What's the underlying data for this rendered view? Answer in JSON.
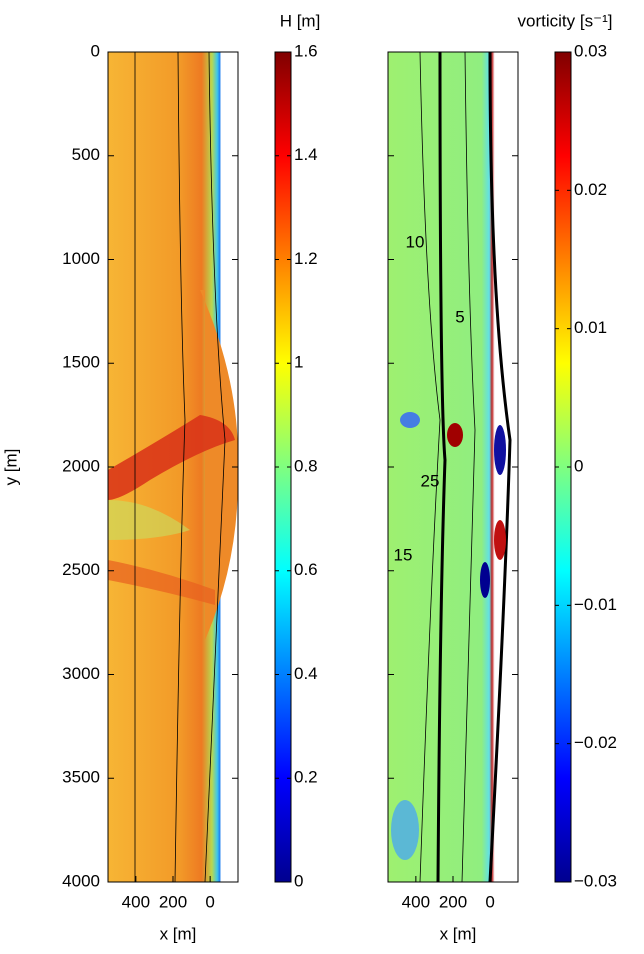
{
  "chart_data": [
    {
      "type": "heatmap",
      "ylabel": "y [m]",
      "xlabel": "x [m]",
      "ylim": [
        0,
        4000
      ],
      "yticks": [
        0,
        500,
        1000,
        1500,
        2000,
        2500,
        3000,
        3500,
        4000
      ],
      "xlim": [
        550,
        -150
      ],
      "xticks": [
        400,
        200,
        0
      ],
      "colorbar": {
        "label": "H [m]",
        "lim": [
          0,
          1.6
        ],
        "ticks": [
          0,
          0.2,
          0.4,
          0.6,
          0.8,
          1,
          1.2,
          1.4,
          1.6
        ]
      }
    },
    {
      "type": "heatmap",
      "xlabel": "x [m]",
      "ylim": [
        0,
        4000
      ],
      "xlim": [
        550,
        -150
      ],
      "xticks": [
        400,
        200,
        0
      ],
      "colorbar": {
        "label": "vorticity [s⁻¹]",
        "lim": [
          -0.03,
          0.03
        ],
        "ticks": [
          {
            "value": -0.03,
            "label": "−0.03"
          },
          {
            "value": -0.02,
            "label": "−0.02"
          },
          {
            "value": -0.01,
            "label": "−0.01"
          },
          0,
          0.01,
          0.02,
          0.03
        ]
      },
      "annotations": [
        "10",
        "5",
        "25",
        "15"
      ]
    }
  ]
}
